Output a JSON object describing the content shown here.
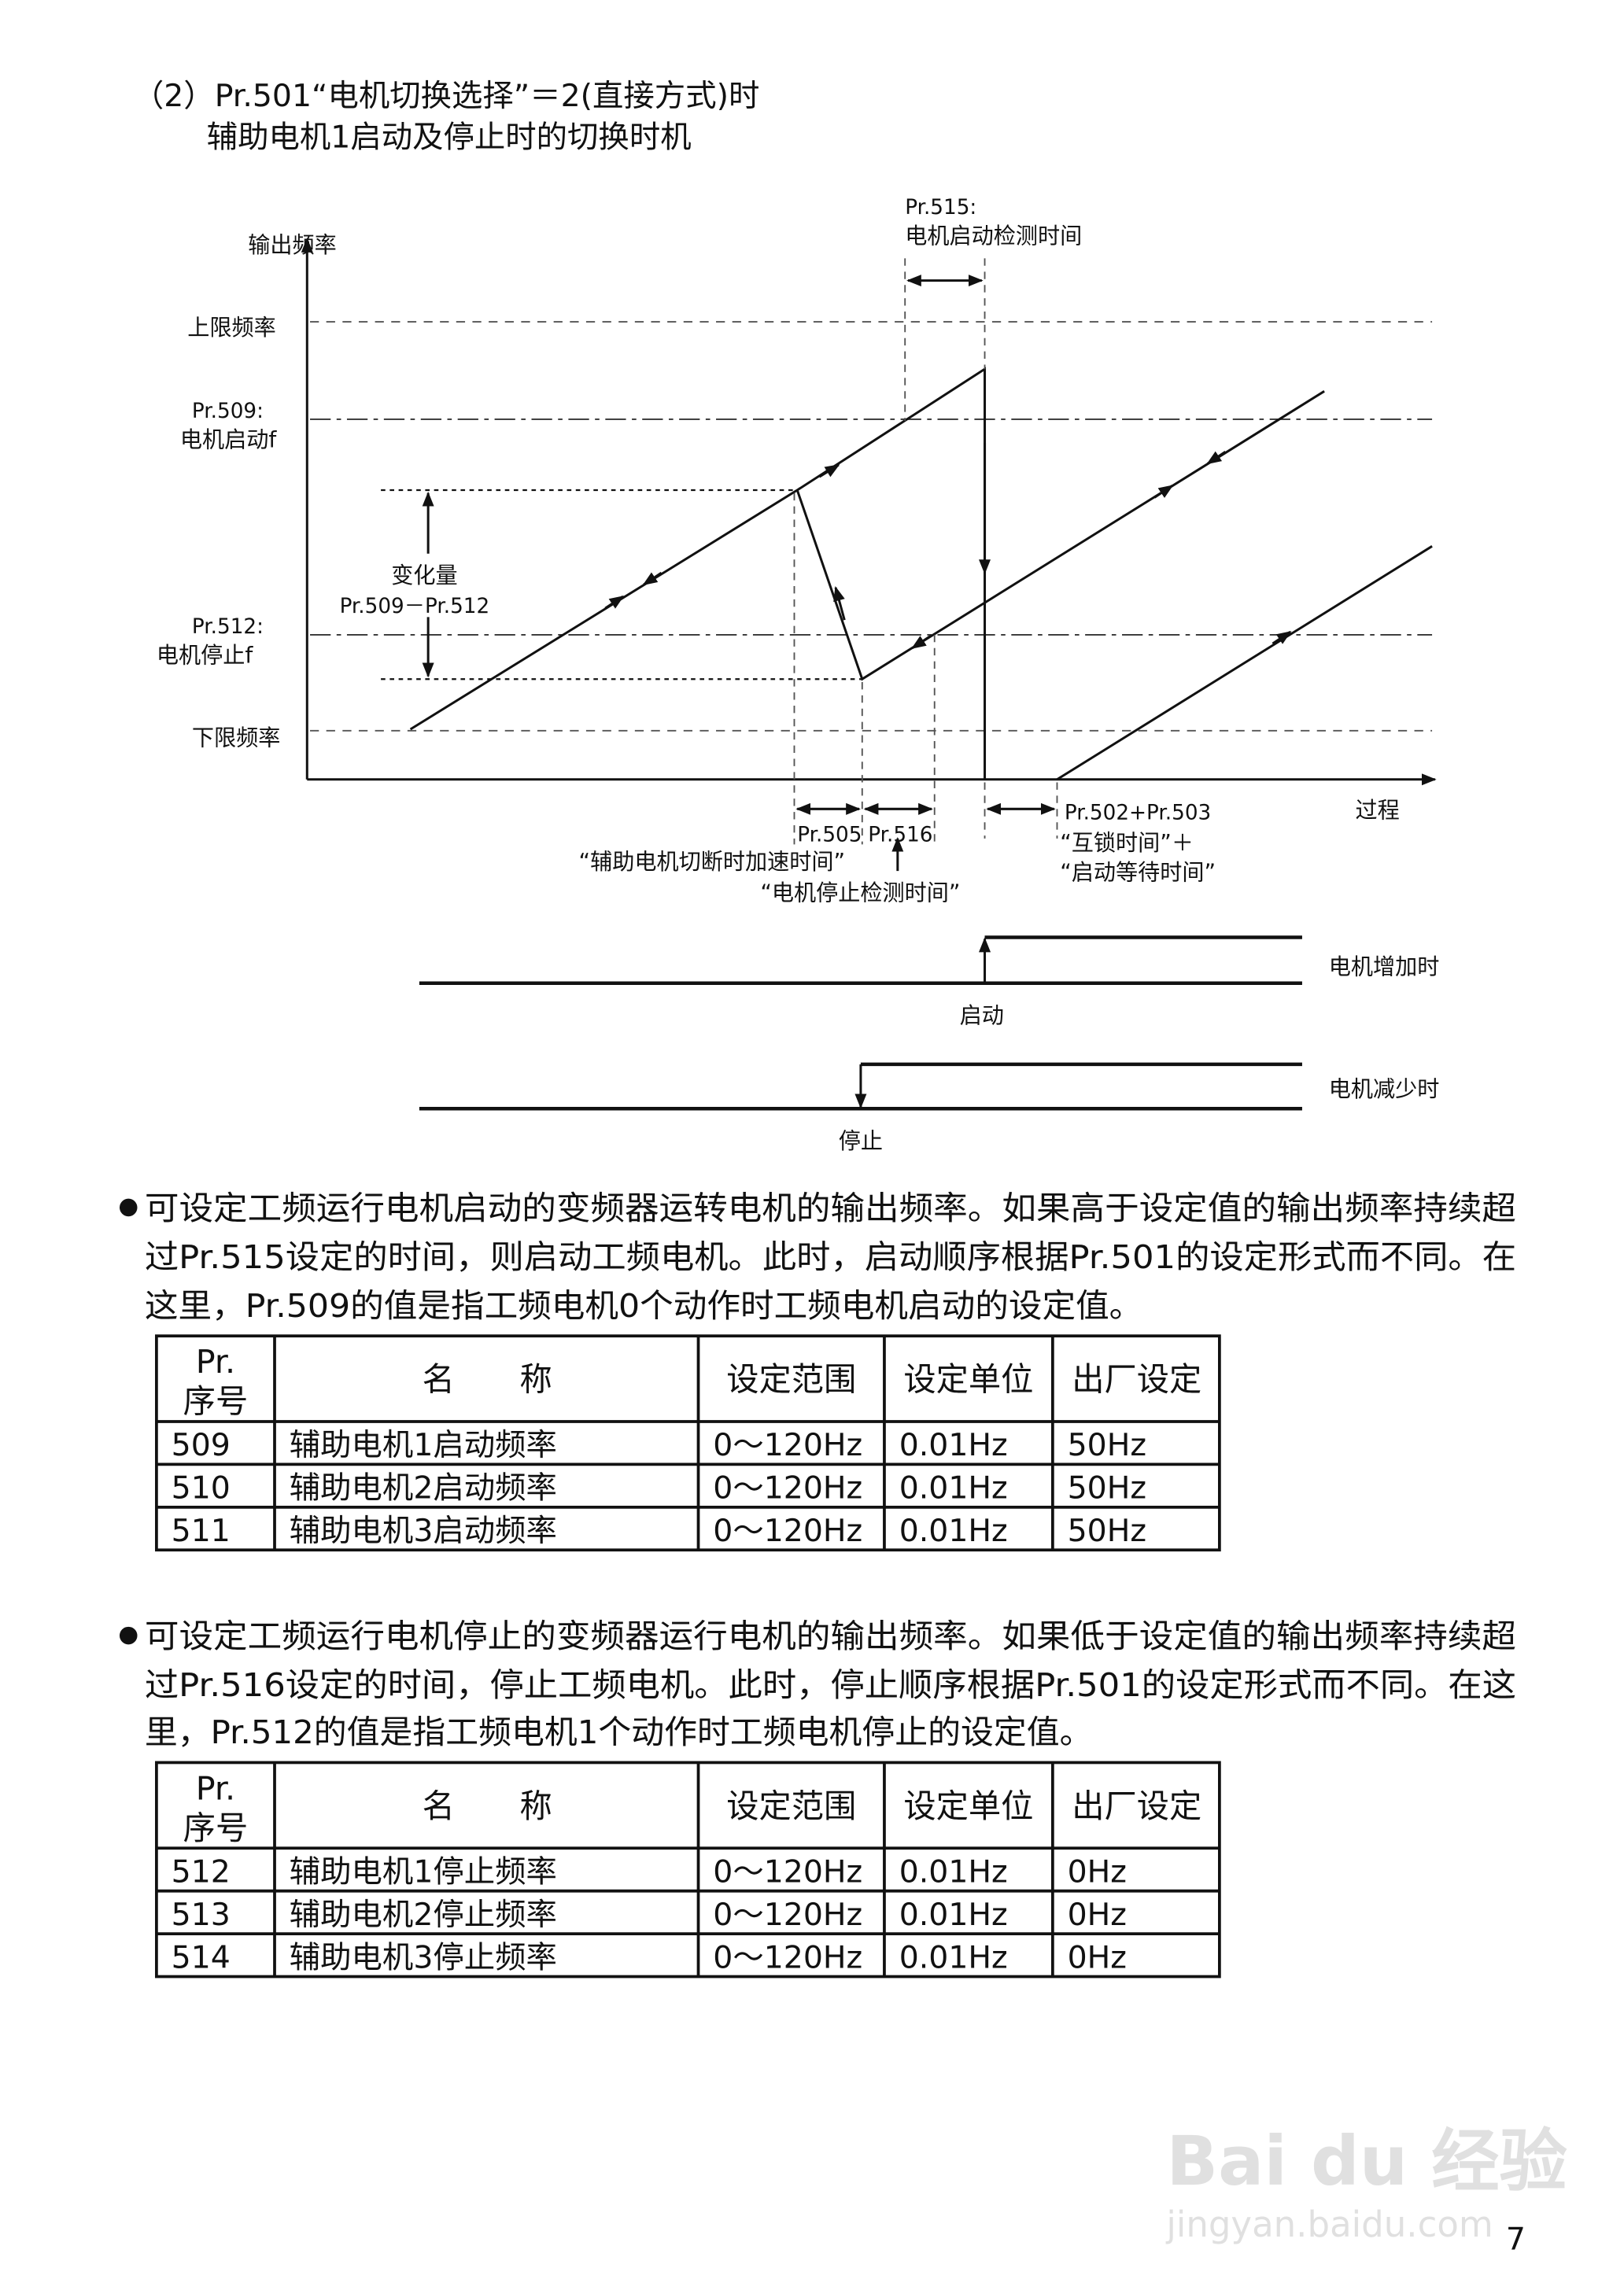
{
  "heading": {
    "line1": "（2）Pr.501“电机切换选择”＝2(直接方式)时",
    "line2": "辅助电机1启动及停止时的切换时机"
  },
  "diagram": {
    "y_axis_label": "输出频率",
    "x_axis_label": "过程",
    "upper_limit": "上限频率",
    "lower_limit": "下限频率",
    "pr509_code": "Pr.509:",
    "pr509_name": "电机启动f",
    "pr512_code": "Pr.512:",
    "pr512_name": "电机停止f",
    "change_label": "变化量",
    "change_formula": "Pr.509－Pr.512",
    "pr515_code": "Pr.515:",
    "pr515_name": "电机启动检测时间",
    "pr505_code": "Pr.505",
    "pr516_code": "Pr.516",
    "pr505_name": "“辅助电机切断时加速时间”",
    "pr516_name": "“电机停止检测时间”",
    "pr502_503_code": "Pr.502+Pr.503",
    "pr502_503_name1": "“互锁时间”＋",
    "pr502_503_name2": "“启动等待时间”",
    "timing_increase_label": "电机增加时",
    "timing_start_label": "启动",
    "timing_decrease_label": "电机减少时",
    "timing_stop_label": "停止"
  },
  "section1": {
    "lines": [
      "可设定工频运行电机启动的变频器运转电机的输出频率。如果高于设定值的输出频率持续超",
      "过Pr.515设定的时间，则启动工频电机。此时，启动顺序根据Pr.501的设定形式而不同。在",
      "这里，Pr.509的值是指工频电机0个动作时工频电机启动的设定值。"
    ],
    "table": {
      "headers": [
        "Pr.",
        "序号",
        "名　　称",
        "设定范围",
        "设定单位",
        "出厂设定"
      ],
      "rows": [
        [
          "509",
          "辅助电机1启动频率",
          "0～120Hz",
          "0.01Hz",
          "50Hz"
        ],
        [
          "510",
          "辅助电机2启动频率",
          "0～120Hz",
          "0.01Hz",
          "50Hz"
        ],
        [
          "511",
          "辅助电机3启动频率",
          "0～120Hz",
          "0.01Hz",
          "50Hz"
        ]
      ]
    }
  },
  "section2": {
    "lines": [
      "可设定工频运行电机停止的变频器运行电机的输出频率。如果低于设定值的输出频率持续超",
      "过Pr.516设定的时间，停止工频电机。此时，停止顺序根据Pr.501的设定形式而不同。在这",
      "里，Pr.512的值是指工频电机1个动作时工频电机停止的设定值。"
    ],
    "table": {
      "headers": [
        "Pr.",
        "序号",
        "名　　称",
        "设定范围",
        "设定单位",
        "出厂设定"
      ],
      "rows": [
        [
          "512",
          "辅助电机1停止频率",
          "0～120Hz",
          "0.01Hz",
          "0Hz"
        ],
        [
          "513",
          "辅助电机2停止频率",
          "0～120Hz",
          "0.01Hz",
          "0Hz"
        ],
        [
          "514",
          "辅助电机3停止频率",
          "0～120Hz",
          "0.01Hz",
          "0Hz"
        ]
      ]
    }
  },
  "page_number": "7",
  "watermark": {
    "brand": "Bai du 经验",
    "url": "jingyan.baidu.com"
  }
}
